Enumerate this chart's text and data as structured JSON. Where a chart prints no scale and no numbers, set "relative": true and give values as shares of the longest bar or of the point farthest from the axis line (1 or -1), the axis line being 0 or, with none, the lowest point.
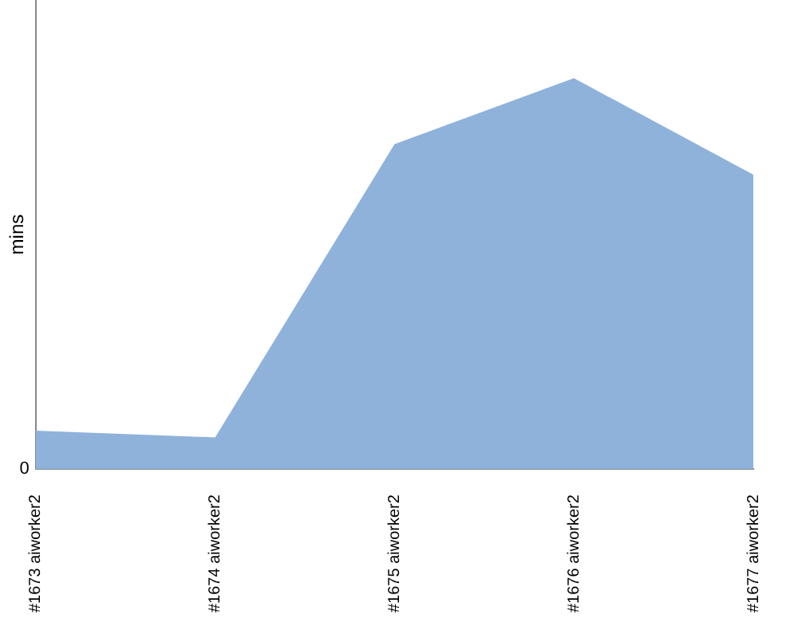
{
  "chart_data": {
    "type": "area",
    "ylabel": "mins",
    "relative": true,
    "annotations": [
      "0"
    ],
    "grid": false,
    "legend": false,
    "categories": [
      "#1673 aiworker2",
      "#1674 aiworker2",
      "#1675 aiworker2",
      "#1676 aiworker2",
      "#1677 aiworker2"
    ],
    "series": [
      {
        "color": "#8fb2db",
        "values": [
          0.098,
          0.081,
          0.831,
          1,
          0.753
        ]
      }
    ]
  }
}
